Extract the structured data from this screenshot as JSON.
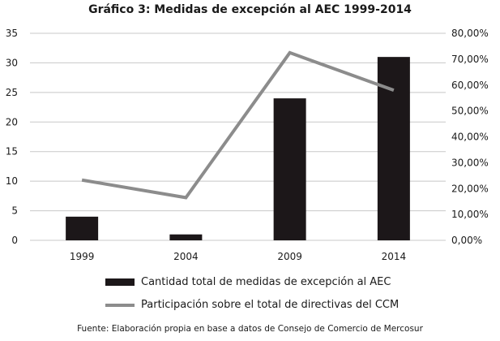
{
  "chart_data": {
    "type": "bar",
    "title": "Gráfico 3: Medidas de excepción al AEC 1999-2014",
    "categories": [
      "1999",
      "2004",
      "2009",
      "2014"
    ],
    "series": [
      {
        "name": "Cantidad total de medidas de excepción al AEC",
        "type": "bar",
        "axis": "left",
        "values": [
          4,
          1,
          24,
          31
        ],
        "color": "#1c1719"
      },
      {
        "name": "Participación sobre el total de directivas del CCM",
        "type": "line",
        "axis": "right",
        "values": [
          0.233,
          0.165,
          0.725,
          0.58
        ],
        "color": "#8c8c8c"
      }
    ],
    "ylim": [
      0,
      35
    ],
    "yticks": [
      "0",
      "5",
      "10",
      "15",
      "20",
      "25",
      "30",
      "35"
    ],
    "y2lim": [
      0,
      0.8
    ],
    "y2ticks": [
      "0,00%",
      "10,00%",
      "20,00%",
      "30,00%",
      "40,00%",
      "50,00%",
      "60,00%",
      "70,00%",
      "80,00%"
    ],
    "grid": true,
    "legend_position": "bottom"
  },
  "source": "Fuente: Elaboración propia en base a datos de Consejo de Comercio de Mercosur"
}
